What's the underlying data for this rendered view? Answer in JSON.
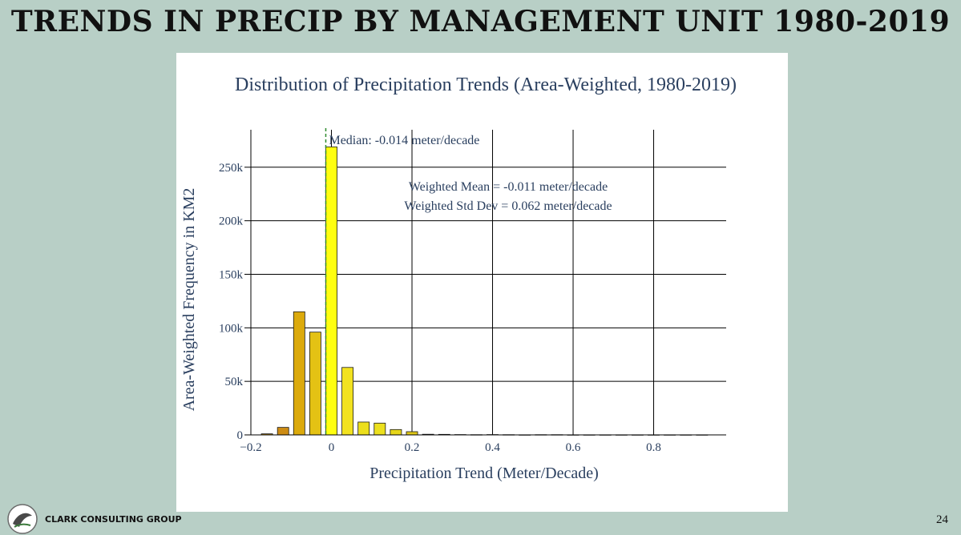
{
  "slide": {
    "title": "TRENDS IN PRECIP BY MANAGEMENT UNIT 1980-2019",
    "page_number": "24",
    "company": "CLARK CONSULTING GROUP"
  },
  "chart_data": {
    "type": "bar",
    "title": "Distribution of Precipitation Trends (Area-Weighted, 1980-2019)",
    "xlabel": "Precipitation Trend (Meter/Decade)",
    "ylabel": "Area-Weighted Frequency in KM2",
    "xlim": [
      -0.2,
      0.98
    ],
    "ylim": [
      0,
      285000
    ],
    "x_ticks": [
      {
        "value": -0.2,
        "label": "−0.2"
      },
      {
        "value": 0,
        "label": "0"
      },
      {
        "value": 0.2,
        "label": "0.2"
      },
      {
        "value": 0.4,
        "label": "0.4"
      },
      {
        "value": 0.6,
        "label": "0.6"
      },
      {
        "value": 0.8,
        "label": "0.8"
      }
    ],
    "y_ticks": [
      {
        "value": 0,
        "label": "0"
      },
      {
        "value": 50000,
        "label": "50k"
      },
      {
        "value": 100000,
        "label": "100k"
      },
      {
        "value": 150000,
        "label": "150k"
      },
      {
        "value": 200000,
        "label": "200k"
      },
      {
        "value": 250000,
        "label": "250k"
      }
    ],
    "grid": true,
    "bin_width": 0.04,
    "bins": [
      {
        "x": -0.16,
        "value": 1000,
        "color": "#b8860b"
      },
      {
        "x": -0.12,
        "value": 7000,
        "color": "#cd8c14"
      },
      {
        "x": -0.08,
        "value": 115000,
        "color": "#dcaa0c"
      },
      {
        "x": -0.04,
        "value": 96000,
        "color": "#e4c214"
      },
      {
        "x": 0.0,
        "value": 269000,
        "color": "#ffff10"
      },
      {
        "x": 0.04,
        "value": 63000,
        "color": "#f2e220"
      },
      {
        "x": 0.08,
        "value": 12000,
        "color": "#ecdf1c"
      },
      {
        "x": 0.12,
        "value": 11000,
        "color": "#ece01e"
      },
      {
        "x": 0.16,
        "value": 5000,
        "color": "#e6d61a"
      },
      {
        "x": 0.2,
        "value": 3000,
        "color": "#e0c818"
      },
      {
        "x": 0.24,
        "value": 600,
        "color": "#d4b216"
      },
      {
        "x": 0.28,
        "value": 500,
        "color": "#d4b216"
      },
      {
        "x": 0.32,
        "value": 300,
        "color": "#d4b216"
      },
      {
        "x": 0.36,
        "value": 200,
        "color": "#d4b216"
      },
      {
        "x": 0.4,
        "value": 300,
        "color": "#d4b216"
      },
      {
        "x": 0.44,
        "value": 200,
        "color": "#d4b216"
      },
      {
        "x": 0.48,
        "value": 100,
        "color": "#d4b216"
      },
      {
        "x": 0.52,
        "value": 200,
        "color": "#d4b216"
      },
      {
        "x": 0.56,
        "value": 200,
        "color": "#d4b216"
      },
      {
        "x": 0.6,
        "value": 100,
        "color": "#d4b216"
      },
      {
        "x": 0.64,
        "value": 100,
        "color": "#d4b216"
      },
      {
        "x": 0.68,
        "value": 100,
        "color": "#d4b216"
      },
      {
        "x": 0.72,
        "value": 100,
        "color": "#d4b216"
      },
      {
        "x": 0.76,
        "value": 100,
        "color": "#d4b216"
      },
      {
        "x": 0.8,
        "value": 100,
        "color": "#d4b216"
      },
      {
        "x": 0.84,
        "value": 100,
        "color": "#d4b216"
      },
      {
        "x": 0.88,
        "value": 100,
        "color": "#d4b216"
      },
      {
        "x": 0.92,
        "value": 100,
        "color": "#d4b216"
      }
    ],
    "median": {
      "value": -0.014,
      "label": "Median: -0.014 meter/decade",
      "color": "#2e8b2e"
    },
    "annotations": [
      "Weighted Mean = -0.011 meter/decade",
      "Weighted Std Dev = 0.062 meter/decade"
    ]
  }
}
